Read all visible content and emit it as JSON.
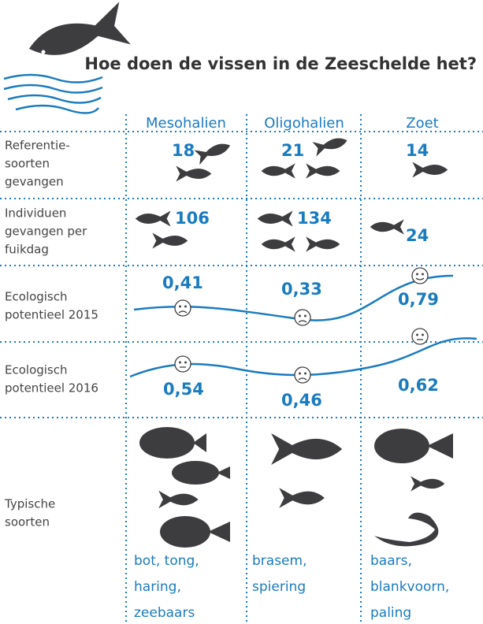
{
  "header": {
    "title": "Hoe doen de vissen in de Zeeschelde het?"
  },
  "table": {
    "columns": [
      "Mesohalien",
      "Oligohalien",
      "Zoet"
    ],
    "rows": [
      {
        "label": [
          "Referentie-",
          "soorten",
          "gevangen"
        ],
        "cells": [
          18,
          21,
          14
        ]
      },
      {
        "label": [
          "Individuen",
          "gevangen per",
          "fuikdag"
        ],
        "cells": [
          106,
          134,
          24
        ]
      },
      {
        "label": [
          "Ecologisch",
          "potentieel 2015"
        ],
        "cells": [
          "0,41",
          "0,33",
          "0,79"
        ]
      },
      {
        "label": [
          "Ecologisch",
          "potentieel 2016"
        ],
        "cells": [
          "0,54",
          "0,46",
          "0,62"
        ]
      },
      {
        "label": [
          "Typische",
          "soorten"
        ],
        "cells": [
          [
            "bot, tong,",
            "haring,",
            "zeebaars"
          ],
          [
            "brasem,",
            "spiering"
          ],
          [
            "baars,",
            "blankvoorn,",
            "paling"
          ]
        ]
      }
    ]
  }
}
